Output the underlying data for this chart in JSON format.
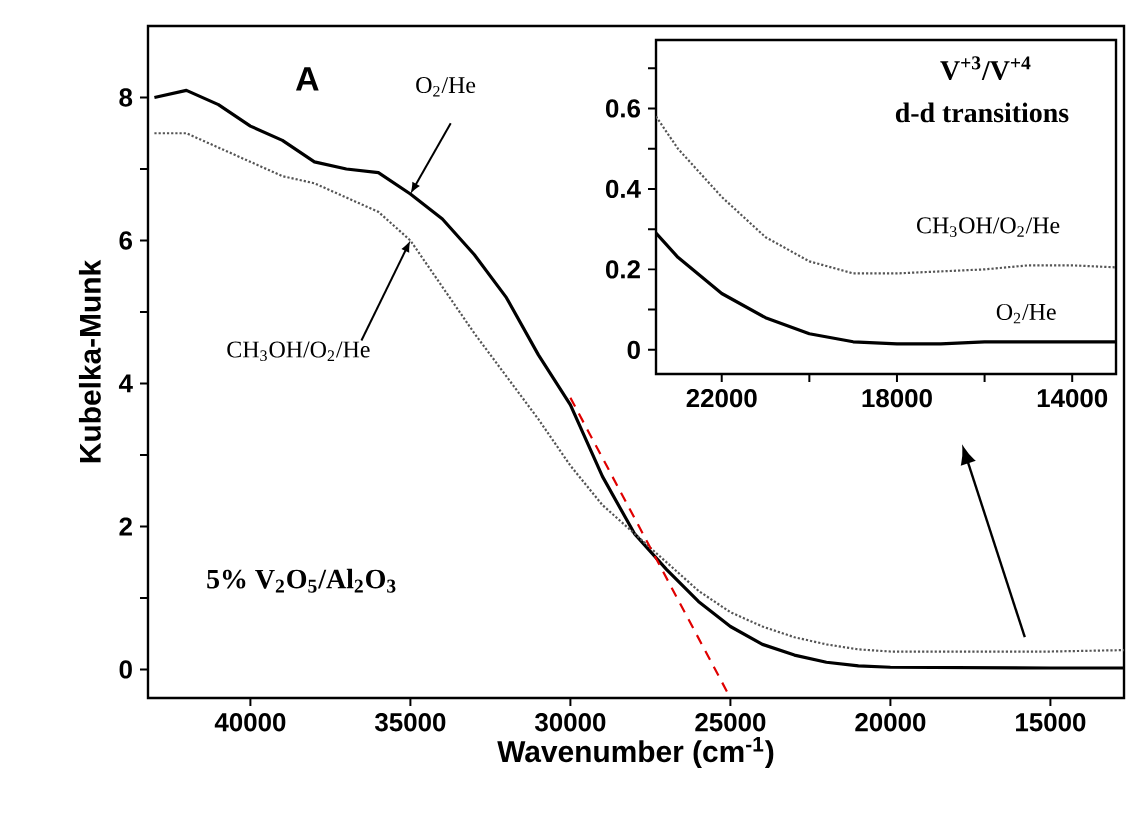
{
  "chart_data": [
    {
      "type": "line",
      "xlabel": "Wavenumber (cm$^{-1}$)",
      "ylabel": "Kubelka-Munk",
      "xlim": [
        43200,
        12700
      ],
      "ylim": [
        -0.4,
        9
      ],
      "xticks": [
        40000,
        35000,
        30000,
        25000,
        20000,
        15000
      ],
      "yticks": [
        0,
        {
          "value": 1,
          "label": null
        },
        2,
        {
          "value": 3,
          "label": null
        },
        4,
        {
          "value": 5,
          "label": null
        },
        6,
        {
          "value": 7,
          "label": null
        },
        8
      ],
      "annotations": [
        "A",
        "5% V$_{2}$O$_{5}$/Al$_{2}$O$_{3}$",
        {
          "text": "O$_{2}$/He",
          "x": 35000,
          "y": 6.65
        },
        {
          "text": "CH$_{3}$OH/O$_{2}$/He",
          "x": 35000,
          "y": 6.0
        }
      ],
      "series": [
        {
          "color": "#000000",
          "line_style": "solid",
          "x": [
            43000,
            42000,
            41000,
            40000,
            39000,
            38000,
            37000,
            36000,
            35000,
            34000,
            33000,
            32000,
            31000,
            30000,
            29000,
            28000,
            27000,
            26000,
            25000,
            24000,
            23000,
            22000,
            21000,
            20000,
            15000,
            12700
          ],
          "values": [
            8.0,
            8.1,
            7.9,
            7.6,
            7.4,
            7.1,
            7.0,
            6.95,
            6.65,
            6.3,
            5.8,
            5.2,
            4.4,
            3.7,
            2.7,
            1.9,
            1.4,
            0.95,
            0.6,
            0.35,
            0.2,
            0.1,
            0.05,
            0.03,
            0.02,
            0.02
          ]
        },
        {
          "color": "#555555",
          "line_style": "dotted",
          "x": [
            43000,
            42000,
            41000,
            40000,
            39000,
            38000,
            37000,
            36000,
            35000,
            34000,
            33000,
            32000,
            31000,
            30000,
            29000,
            28000,
            27000,
            26000,
            25000,
            24000,
            23000,
            22000,
            21000,
            20000,
            15000,
            12700
          ],
          "values": [
            7.5,
            7.5,
            7.3,
            7.1,
            6.9,
            6.8,
            6.6,
            6.4,
            6.0,
            5.35,
            4.7,
            4.1,
            3.5,
            2.85,
            2.3,
            1.9,
            1.5,
            1.1,
            0.8,
            0.6,
            0.45,
            0.35,
            0.28,
            0.25,
            0.25,
            0.27
          ]
        },
        {
          "color": "#e00000",
          "line_style": "dashed",
          "x": [
            30000,
            25000
          ],
          "values": [
            3.8,
            -0.4
          ]
        }
      ]
    },
    {
      "type": "line",
      "xlim": [
        23500,
        13000
      ],
      "ylim": [
        -0.06,
        0.77
      ],
      "xticks": [
        22000,
        {
          "value": 20000,
          "label": null
        },
        18000,
        {
          "value": 16000,
          "label": null
        },
        14000
      ],
      "yticks": [
        0,
        {
          "value": 0.1,
          "label": null
        },
        0.2,
        {
          "value": 0.3,
          "label": null
        },
        0.4,
        {
          "value": 0.5,
          "label": null
        },
        0.6,
        {
          "value": 0.7,
          "label": null
        }
      ],
      "annotations": [
        "V$^{+3}$/V$^{+4}$",
        "d-d transitions"
      ],
      "series": [
        {
          "name": "CH$_{3}$OH/O$_{2}$/He",
          "color": "#555555",
          "line_style": "dotted",
          "x": [
            23500,
            23000,
            22000,
            21000,
            20000,
            19000,
            18000,
            17000,
            16000,
            15000,
            14000,
            13000
          ],
          "values": [
            0.58,
            0.5,
            0.38,
            0.28,
            0.22,
            0.19,
            0.19,
            0.195,
            0.2,
            0.21,
            0.21,
            0.205
          ]
        },
        {
          "name": "O$_{2}$/He",
          "color": "#000000",
          "line_style": "solid",
          "x": [
            23500,
            23000,
            22000,
            21000,
            20000,
            19000,
            18000,
            17000,
            16000,
            15000,
            14000,
            13000
          ],
          "values": [
            0.29,
            0.23,
            0.14,
            0.08,
            0.04,
            0.02,
            0.015,
            0.015,
            0.02,
            0.02,
            0.02,
            0.02
          ]
        }
      ]
    }
  ]
}
